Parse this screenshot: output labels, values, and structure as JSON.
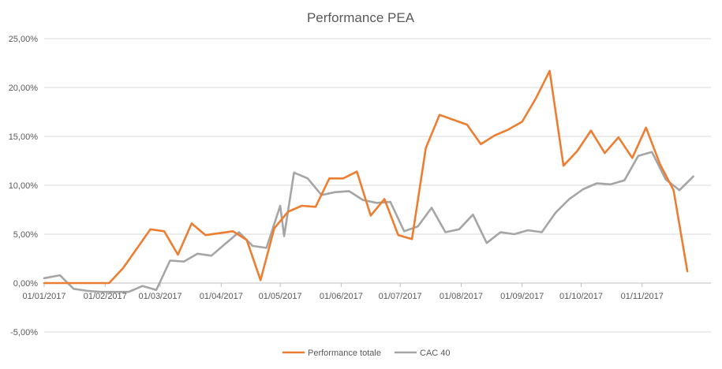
{
  "chart_data": {
    "type": "line",
    "title": "Performance PEA",
    "xlabel": "",
    "ylabel": "",
    "x_range": [
      "2017-01-01",
      "2017-12-06"
    ],
    "ylim": [
      -0.05,
      0.25
    ],
    "y_ticks": [
      0.25,
      0.2,
      0.15,
      0.1,
      0.05,
      0.0,
      -0.05
    ],
    "y_tick_labels": [
      "25,00%",
      "20,00%",
      "15,00%",
      "10,00%",
      "5,00%",
      "0,00%",
      "-5,00%"
    ],
    "x_ticks": [
      "2017-01-01",
      "2017-02-01",
      "2017-03-01",
      "2017-04-01",
      "2017-05-01",
      "2017-06-01",
      "2017-07-01",
      "2017-08-01",
      "2017-09-01",
      "2017-10-01",
      "2017-11-01"
    ],
    "x_tick_labels": [
      "01/01/2017",
      "01/02/2017",
      "01/03/2017",
      "01/04/2017",
      "01/05/2017",
      "01/06/2017",
      "01/07/2017",
      "01/08/2017",
      "01/09/2017",
      "01/10/2017",
      "01/11/2017"
    ],
    "grid": true,
    "legend_position": "bottom",
    "series": [
      {
        "name": "Performance totale",
        "color": "#ed7d31",
        "points": [
          [
            "2017-01-01",
            0.0
          ],
          [
            "2017-01-09",
            0.0
          ],
          [
            "2017-01-16",
            0.0
          ],
          [
            "2017-01-23",
            0.0
          ],
          [
            "2017-01-30",
            0.0
          ],
          [
            "2017-02-03",
            0.0
          ],
          [
            "2017-02-10",
            0.015
          ],
          [
            "2017-02-17",
            0.035
          ],
          [
            "2017-02-24",
            0.055
          ],
          [
            "2017-03-03",
            0.053
          ],
          [
            "2017-03-10",
            0.029
          ],
          [
            "2017-03-17",
            0.061
          ],
          [
            "2017-03-24",
            0.049
          ],
          [
            "2017-04-07",
            0.053
          ],
          [
            "2017-04-14",
            0.044
          ],
          [
            "2017-04-21",
            0.003
          ],
          [
            "2017-04-28",
            0.056
          ],
          [
            "2017-05-05",
            0.073
          ],
          [
            "2017-05-12",
            0.079
          ],
          [
            "2017-05-19",
            0.078
          ],
          [
            "2017-05-26",
            0.107
          ],
          [
            "2017-06-02",
            0.107
          ],
          [
            "2017-06-09",
            0.114
          ],
          [
            "2017-06-16",
            0.069
          ],
          [
            "2017-06-23",
            0.086
          ],
          [
            "2017-06-30",
            0.049
          ],
          [
            "2017-07-07",
            0.045
          ],
          [
            "2017-07-14",
            0.138
          ],
          [
            "2017-07-21",
            0.172
          ],
          [
            "2017-07-28",
            0.167
          ],
          [
            "2017-08-04",
            0.162
          ],
          [
            "2017-08-11",
            0.142
          ],
          [
            "2017-08-18",
            0.151
          ],
          [
            "2017-08-25",
            0.157
          ],
          [
            "2017-09-01",
            0.165
          ],
          [
            "2017-09-08",
            0.189
          ],
          [
            "2017-09-15",
            0.217
          ],
          [
            "2017-09-22",
            0.12
          ],
          [
            "2017-09-29",
            0.135
          ],
          [
            "2017-10-06",
            0.156
          ],
          [
            "2017-10-13",
            0.133
          ],
          [
            "2017-10-20",
            0.149
          ],
          [
            "2017-10-27",
            0.128
          ],
          [
            "2017-11-03",
            0.159
          ],
          [
            "2017-11-10",
            0.122
          ],
          [
            "2017-11-17",
            0.095
          ],
          [
            "2017-11-24",
            0.012
          ]
        ]
      },
      {
        "name": "CAC 40",
        "color": "#a5a5a5",
        "points": [
          [
            "2017-01-01",
            0.005
          ],
          [
            "2017-01-09",
            0.008
          ],
          [
            "2017-01-16",
            -0.006
          ],
          [
            "2017-01-23",
            -0.008
          ],
          [
            "2017-01-30",
            -0.009
          ],
          [
            "2017-02-06",
            -0.009
          ],
          [
            "2017-02-13",
            -0.009
          ],
          [
            "2017-02-20",
            -0.003
          ],
          [
            "2017-02-27",
            -0.007
          ],
          [
            "2017-03-06",
            0.023
          ],
          [
            "2017-03-13",
            0.022
          ],
          [
            "2017-03-20",
            0.03
          ],
          [
            "2017-03-27",
            0.028
          ],
          [
            "2017-04-03",
            0.04
          ],
          [
            "2017-04-10",
            0.052
          ],
          [
            "2017-04-17",
            0.038
          ],
          [
            "2017-04-24",
            0.036
          ],
          [
            "2017-05-01",
            0.079
          ],
          [
            "2017-05-03",
            0.048
          ],
          [
            "2017-05-08",
            0.113
          ],
          [
            "2017-05-15",
            0.107
          ],
          [
            "2017-05-22",
            0.09
          ],
          [
            "2017-05-29",
            0.093
          ],
          [
            "2017-06-05",
            0.094
          ],
          [
            "2017-06-12",
            0.085
          ],
          [
            "2017-06-19",
            0.082
          ],
          [
            "2017-06-26",
            0.083
          ],
          [
            "2017-07-03",
            0.053
          ],
          [
            "2017-07-10",
            0.058
          ],
          [
            "2017-07-17",
            0.077
          ],
          [
            "2017-07-24",
            0.052
          ],
          [
            "2017-07-31",
            0.055
          ],
          [
            "2017-08-07",
            0.07
          ],
          [
            "2017-08-14",
            0.041
          ],
          [
            "2017-08-21",
            0.052
          ],
          [
            "2017-08-28",
            0.05
          ],
          [
            "2017-09-04",
            0.054
          ],
          [
            "2017-09-11",
            0.052
          ],
          [
            "2017-09-18",
            0.072
          ],
          [
            "2017-09-25",
            0.086
          ],
          [
            "2017-10-02",
            0.096
          ],
          [
            "2017-10-09",
            0.102
          ],
          [
            "2017-10-16",
            0.101
          ],
          [
            "2017-10-23",
            0.105
          ],
          [
            "2017-10-30",
            0.13
          ],
          [
            "2017-11-06",
            0.134
          ],
          [
            "2017-11-13",
            0.106
          ],
          [
            "2017-11-20",
            0.095
          ],
          [
            "2017-11-27",
            0.109
          ]
        ]
      }
    ]
  }
}
